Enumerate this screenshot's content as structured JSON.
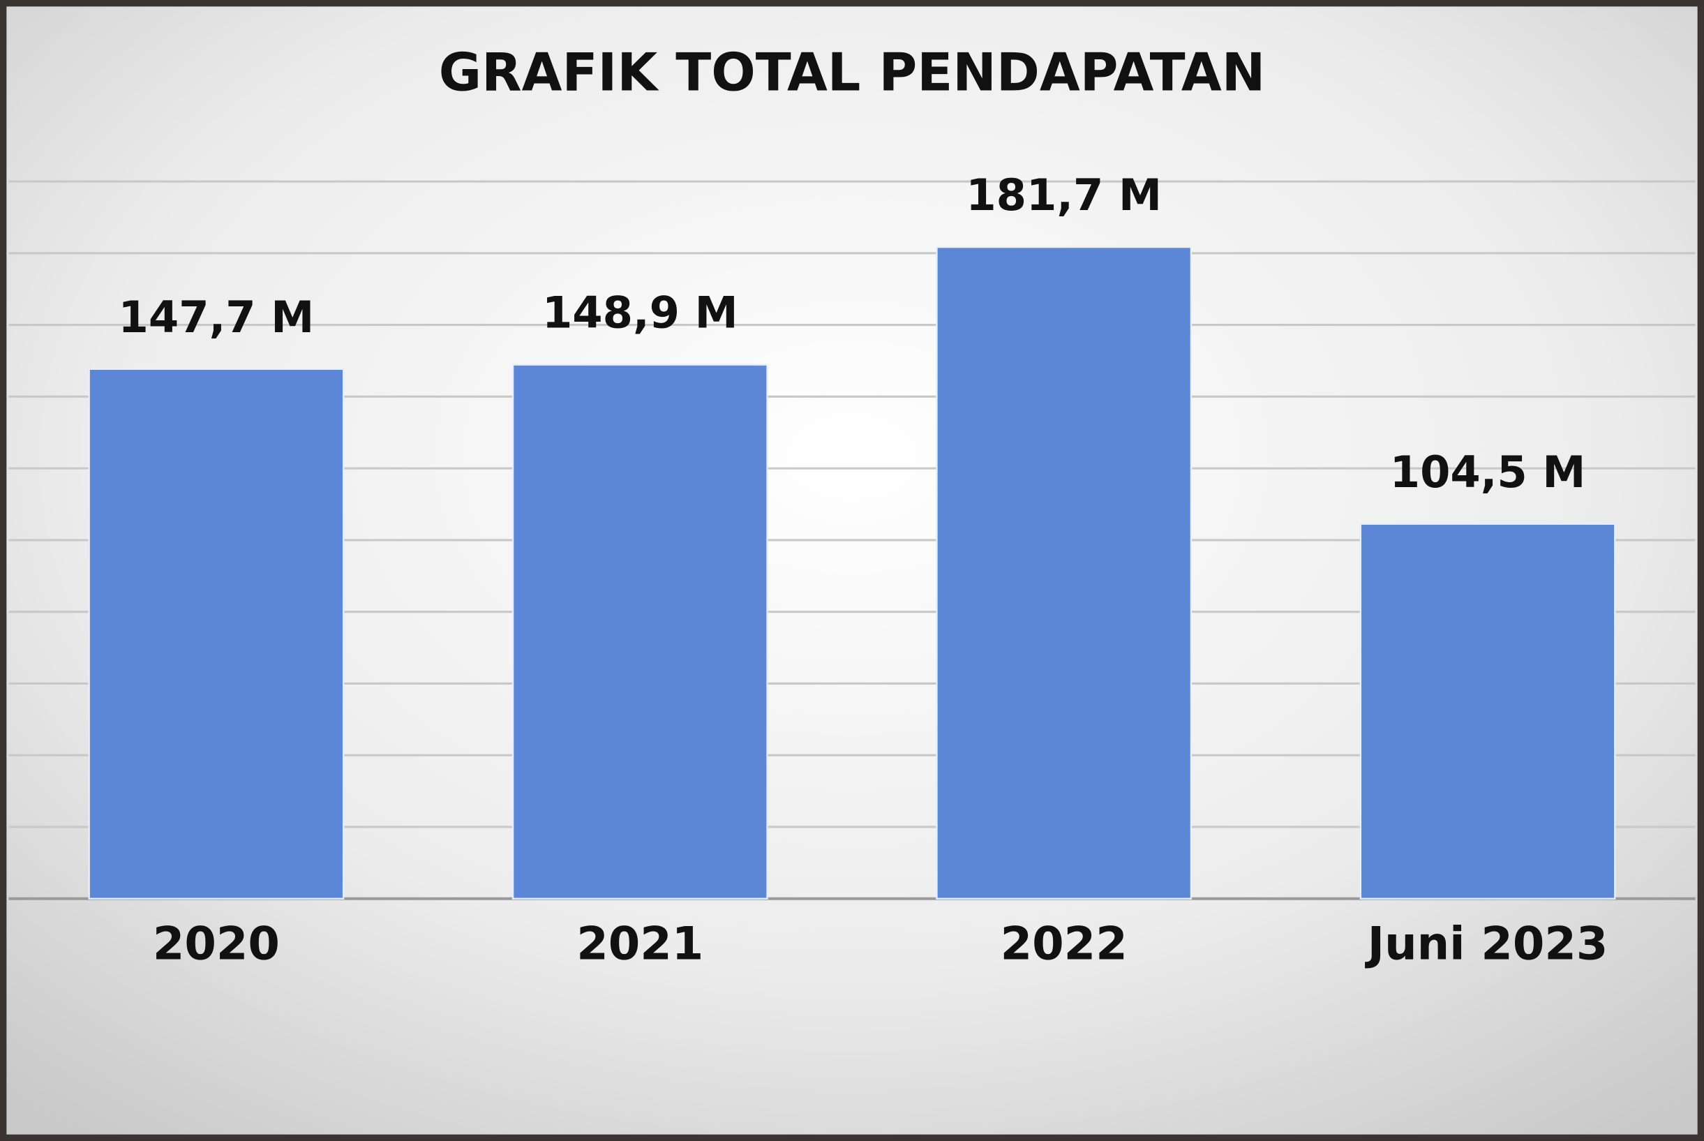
{
  "chart_data": {
    "type": "bar",
    "title": "GRAFIK TOTAL PENDAPATAN",
    "categories": [
      "2020",
      "2021",
      "2022",
      "Juni 2023"
    ],
    "values": [
      147.7,
      148.9,
      181.7,
      104.5
    ],
    "value_labels": [
      "147,7 M",
      "148,9 M",
      "181,7 M",
      "104,5 M"
    ],
    "color": "#5b87d6",
    "ylim": [
      0,
      200
    ],
    "yticks": [
      0,
      20,
      40,
      60,
      80,
      100,
      120,
      140,
      160,
      180,
      200
    ],
    "grid": true
  }
}
